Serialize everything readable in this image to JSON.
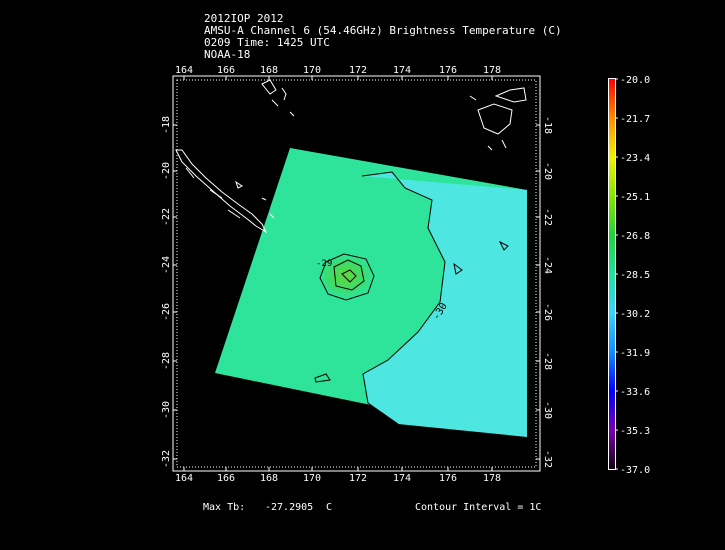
{
  "header": {
    "line1": "2012IOP 2012",
    "line2": "AMSU-A Channel 6 (54.46GHz) Brightness Temperature (C)",
    "line3": "0209 Time: 1425 UTC",
    "line4": "NOAA-18"
  },
  "map": {
    "lon_ticks": [
      "164",
      "166",
      "168",
      "170",
      "172",
      "174",
      "176",
      "178"
    ],
    "lat_ticks": [
      "-18",
      "-20",
      "-22",
      "-24",
      "-26",
      "-28",
      "-30",
      "-32"
    ],
    "contour_labels": [
      "-29",
      "-30"
    ]
  },
  "colorbar": {
    "labels": [
      "-20.0",
      "-21.7",
      "-23.4",
      "-25.1",
      "-26.8",
      "-28.5",
      "-30.2",
      "-31.9",
      "-33.6",
      "-35.3",
      "-37.0"
    ],
    "colors": [
      "#ff0000",
      "#ff8c00",
      "#f2f200",
      "#86e600",
      "#22d23a",
      "#22e0a0",
      "#3cd2ff",
      "#148cff",
      "#0000ff",
      "#7a00b0",
      "#100010"
    ]
  },
  "footer": {
    "max_tb_label": "Max Tb:",
    "max_tb_value": "-27.2905",
    "max_tb_unit": "C",
    "contour_interval": "Contour Interval = 1C"
  }
}
